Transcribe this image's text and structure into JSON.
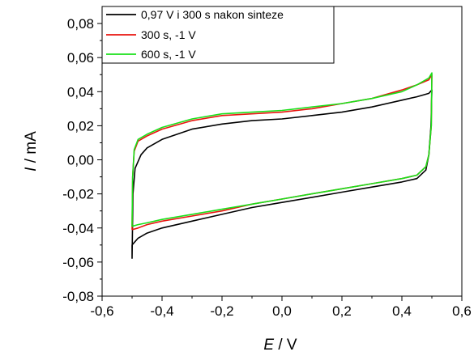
{
  "chart_data": {
    "type": "line",
    "xlabel_italic": "E",
    "xlabel_unit": " / V",
    "ylabel_italic": "I",
    "ylabel_unit": " / mA",
    "xlim": [
      -0.6,
      0.6
    ],
    "ylim": [
      -0.08,
      0.09
    ],
    "x_ticks": [
      -0.6,
      -0.4,
      -0.2,
      0.0,
      0.2,
      0.4,
      0.6
    ],
    "x_tick_labels": [
      "-0,6",
      "-0,4",
      "-0,2",
      "0,0",
      "0,2",
      "0,4",
      "0,6"
    ],
    "y_ticks": [
      -0.08,
      -0.06,
      -0.04,
      -0.02,
      0.0,
      0.02,
      0.04,
      0.06,
      0.08
    ],
    "y_tick_labels": [
      "-0,08",
      "-0,06",
      "-0,04",
      "-0,02",
      "0,00",
      "0,02",
      "0,04",
      "0,06",
      "0,08"
    ],
    "grid": false,
    "legend_position": "top-right",
    "series": [
      {
        "name": "0,97 V i 300 s nakon sinteze",
        "color": "#000000",
        "upper": [
          [
            -0.5,
            -0.058
          ],
          [
            -0.497,
            -0.02
          ],
          [
            -0.49,
            -0.005
          ],
          [
            -0.47,
            0.003
          ],
          [
            -0.45,
            0.007
          ],
          [
            -0.4,
            0.012
          ],
          [
            -0.3,
            0.018
          ],
          [
            -0.2,
            0.021
          ],
          [
            -0.1,
            0.023
          ],
          [
            0.0,
            0.024
          ],
          [
            0.1,
            0.026
          ],
          [
            0.2,
            0.028
          ],
          [
            0.3,
            0.031
          ],
          [
            0.4,
            0.035
          ],
          [
            0.45,
            0.037
          ],
          [
            0.49,
            0.039
          ],
          [
            0.5,
            0.041
          ]
        ],
        "lower": [
          [
            0.5,
            0.041
          ],
          [
            0.497,
            0.02
          ],
          [
            0.49,
            0.003
          ],
          [
            0.48,
            -0.006
          ],
          [
            0.45,
            -0.011
          ],
          [
            0.4,
            -0.013
          ],
          [
            0.3,
            -0.016
          ],
          [
            0.2,
            -0.019
          ],
          [
            0.1,
            -0.022
          ],
          [
            0.0,
            -0.025
          ],
          [
            -0.1,
            -0.028
          ],
          [
            -0.2,
            -0.032
          ],
          [
            -0.3,
            -0.036
          ],
          [
            -0.4,
            -0.04
          ],
          [
            -0.45,
            -0.043
          ],
          [
            -0.48,
            -0.046
          ],
          [
            -0.5,
            -0.05
          ]
        ]
      },
      {
        "name": "300 s, -1 V",
        "color": "#e8150f",
        "upper": [
          [
            -0.5,
            -0.041
          ],
          [
            -0.498,
            -0.01
          ],
          [
            -0.493,
            0.005
          ],
          [
            -0.48,
            0.011
          ],
          [
            -0.45,
            0.014
          ],
          [
            -0.4,
            0.018
          ],
          [
            -0.3,
            0.023
          ],
          [
            -0.2,
            0.026
          ],
          [
            -0.1,
            0.027
          ],
          [
            0.0,
            0.028
          ],
          [
            0.1,
            0.03
          ],
          [
            0.2,
            0.033
          ],
          [
            0.3,
            0.036
          ],
          [
            0.4,
            0.041
          ],
          [
            0.45,
            0.044
          ],
          [
            0.49,
            0.047
          ],
          [
            0.5,
            0.05
          ]
        ],
        "lower": [
          [
            0.5,
            0.05
          ],
          [
            0.498,
            0.02
          ],
          [
            0.49,
            0.003
          ],
          [
            0.48,
            -0.004
          ],
          [
            0.45,
            -0.009
          ],
          [
            0.4,
            -0.011
          ],
          [
            0.3,
            -0.014
          ],
          [
            0.2,
            -0.017
          ],
          [
            0.1,
            -0.02
          ],
          [
            0.0,
            -0.023
          ],
          [
            -0.1,
            -0.026
          ],
          [
            -0.2,
            -0.03
          ],
          [
            -0.3,
            -0.033
          ],
          [
            -0.4,
            -0.036
          ],
          [
            -0.45,
            -0.038
          ],
          [
            -0.48,
            -0.04
          ],
          [
            -0.5,
            -0.041
          ]
        ]
      },
      {
        "name": "600 s, -1 V",
        "color": "#19e019",
        "upper": [
          [
            -0.5,
            -0.038
          ],
          [
            -0.498,
            -0.01
          ],
          [
            -0.493,
            0.006
          ],
          [
            -0.48,
            0.012
          ],
          [
            -0.45,
            0.015
          ],
          [
            -0.4,
            0.019
          ],
          [
            -0.3,
            0.024
          ],
          [
            -0.2,
            0.027
          ],
          [
            -0.1,
            0.028
          ],
          [
            0.0,
            0.029
          ],
          [
            0.1,
            0.031
          ],
          [
            0.2,
            0.033
          ],
          [
            0.3,
            0.036
          ],
          [
            0.4,
            0.04
          ],
          [
            0.45,
            0.044
          ],
          [
            0.49,
            0.048
          ],
          [
            0.5,
            0.051
          ]
        ],
        "lower": [
          [
            0.5,
            0.051
          ],
          [
            0.498,
            0.02
          ],
          [
            0.49,
            0.003
          ],
          [
            0.48,
            -0.004
          ],
          [
            0.45,
            -0.009
          ],
          [
            0.4,
            -0.011
          ],
          [
            0.3,
            -0.014
          ],
          [
            0.2,
            -0.017
          ],
          [
            0.1,
            -0.02
          ],
          [
            0.0,
            -0.023
          ],
          [
            -0.1,
            -0.026
          ],
          [
            -0.2,
            -0.029
          ],
          [
            -0.3,
            -0.032
          ],
          [
            -0.4,
            -0.035
          ],
          [
            -0.45,
            -0.037
          ],
          [
            -0.48,
            -0.038
          ],
          [
            -0.5,
            -0.039
          ]
        ]
      }
    ]
  }
}
